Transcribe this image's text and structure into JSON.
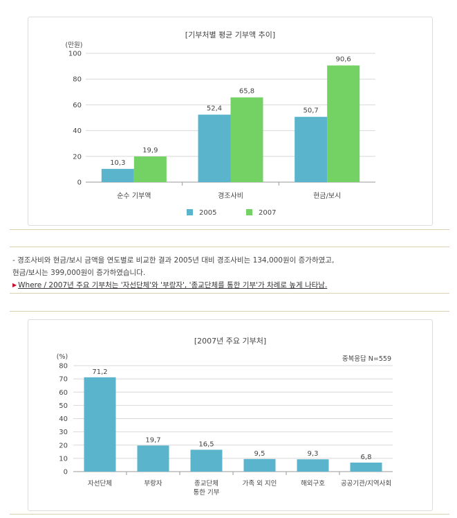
{
  "chart1": {
    "title": "[기부처별 평균 기부액 추이]",
    "unit": "(만원)",
    "chart_data": {
      "type": "bar",
      "title": "[기부처별 평균 기부액 추이]",
      "ylabel": "(만원)",
      "ylim": [
        0,
        100
      ],
      "yticks": [
        "0",
        "20",
        "40",
        "60",
        "80",
        "100"
      ],
      "categories": [
        "순수 기부액",
        "경조사비",
        "현금/보시"
      ],
      "series": [
        {
          "name": "2005",
          "values": [
            10.3,
            52.4,
            50.7
          ],
          "labels": [
            "10,3",
            "52,4",
            "50,7"
          ],
          "color": "#5ab4cc"
        },
        {
          "name": "2007",
          "values": [
            19.9,
            65.8,
            90.6
          ],
          "labels": [
            "19,9",
            "65,8",
            "90,6"
          ],
          "color": "#74d163"
        }
      ],
      "grid": true,
      "legend": "bottom"
    }
  },
  "notes": {
    "line1": "- 경조사비와 현금/보시 금액을 연도별로 비교한 결과 2005년 대비 경조사비는 134,000원이 증가하였고,",
    "line2": "현금/보시는 399,000원이 증가하였습니다.",
    "link": "Where / 2007년 주요 기부처는 '자선단체'와 '부랑자', '종교단체를 통한 기부'가 차례로 높게 나타남.",
    "arrow_icon": "red-triangle-bullet"
  },
  "chart2": {
    "title": "[2007년 주요 기부처]",
    "unit": "(%)",
    "note": "중복응답 N=559",
    "chart_data": {
      "type": "bar",
      "title": "[2007년 주요 기부처]",
      "ylabel": "(%)",
      "ylim": [
        0,
        80
      ],
      "yticks": [
        "0",
        "10",
        "20",
        "30",
        "40",
        "50",
        "60",
        "70",
        "80"
      ],
      "categories": [
        [
          "자선단체"
        ],
        [
          "부랑자"
        ],
        [
          "종교단체",
          "통한 기부"
        ],
        [
          "가족 외 지인"
        ],
        [
          "해외구호"
        ],
        [
          "공공기관/지역사회"
        ]
      ],
      "values": [
        71.2,
        19.7,
        16.5,
        9.5,
        9.3,
        6.8
      ],
      "labels": [
        "71,2",
        "19,7",
        "16,5",
        "9,5",
        "9,3",
        "6,8"
      ],
      "color": "#5ab4cc",
      "grid": true,
      "annotation": "중복응답 N=559"
    }
  }
}
